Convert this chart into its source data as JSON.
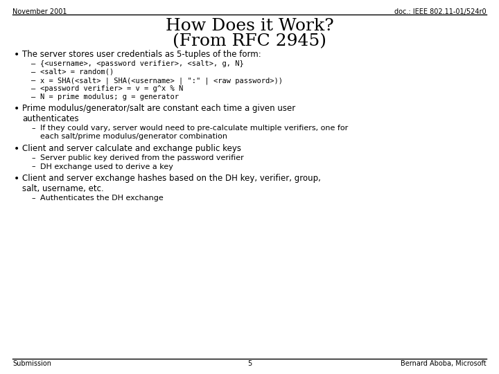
{
  "header_left": "November 2001",
  "header_right": "doc.: IEEE 802.11-01/524r0",
  "title_line1": "How Does it Work?",
  "title_line2": "(From RFC 2945)",
  "footer_left": "Submission",
  "footer_center": "5",
  "footer_right": "Bernard Aboba, Microsoft",
  "background_color": "#ffffff",
  "bullet1": "The server stores user credentials as 5-tuples of the form:",
  "bullet1_subs": [
    "{<username>, <password verifier>, <salt>, g, N}",
    "<salt> = random()",
    "x = SHA(<salt> | SHA(<username> | \":\" | <raw password>))",
    "<password verifier> = v = g^x % N",
    "N = prime modulus; g = generator"
  ],
  "bullet2a": "Prime modulus/generator/salt are constant each time a given user",
  "bullet2b": "authenticates",
  "bullet2_subs": [
    "If they could vary, server would need to pre-calculate multiple verifiers, one for",
    "each salt/prime modulus/generator combination"
  ],
  "bullet3": "Client and server calculate and exchange public keys",
  "bullet3_subs": [
    "Server public key derived from the password verifier",
    "DH exchange used to derive a key"
  ],
  "bullet4a": "Client and server exchange hashes based on the DH key, verifier, group,",
  "bullet4b": "salt, username, etc.",
  "bullet4_subs": [
    "Authenticates the DH exchange"
  ]
}
